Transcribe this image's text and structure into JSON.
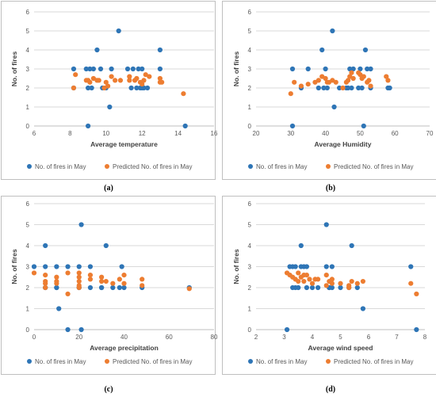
{
  "colors": {
    "actual": "#2E75B6",
    "predicted": "#ED7D31",
    "grid": "#D9D9D9",
    "axis": "#BFBFBF",
    "tick_text": "#595959",
    "label_text": "#404040",
    "panel_border": "#BFBFBF"
  },
  "chart_data": [
    {
      "type": "scatter",
      "panel_label": "(a)",
      "xlabel": "Average temperature",
      "ylabel": "No. of fires",
      "xlim": [
        6,
        16
      ],
      "ylim": [
        0,
        6
      ],
      "xticks": [
        6,
        8,
        10,
        12,
        14,
        16
      ],
      "yticks": [
        0,
        1,
        2,
        3,
        4,
        5,
        6
      ],
      "grid": "horizontal",
      "legend_position": "bottom",
      "series": [
        {
          "name": "No. of fires in May",
          "color": "#2E75B6",
          "points": [
            [
              8.2,
              3
            ],
            [
              8.2,
              2
            ],
            [
              8.9,
              3
            ],
            [
              9.1,
              3
            ],
            [
              9.2,
              2
            ],
            [
              9.3,
              3
            ],
            [
              9.0,
              2
            ],
            [
              9.5,
              4
            ],
            [
              9.8,
              2
            ],
            [
              10.0,
              2
            ],
            [
              10.2,
              1
            ],
            [
              10.3,
              3
            ],
            [
              10.7,
              5
            ],
            [
              11.2,
              3
            ],
            [
              11.4,
              2
            ],
            [
              11.5,
              3
            ],
            [
              11.8,
              3
            ],
            [
              11.9,
              2
            ],
            [
              12.0,
              3
            ],
            [
              12.1,
              2
            ],
            [
              12.3,
              2
            ],
            [
              13.0,
              3
            ],
            [
              13.0,
              4
            ],
            [
              9.0,
              0
            ],
            [
              14.4,
              0
            ],
            [
              11.7,
              2
            ],
            [
              9.7,
              3
            ],
            [
              12.0,
              2
            ]
          ]
        },
        {
          "name": "Predicted No. of fires in May",
          "color": "#ED7D31",
          "points": [
            [
              8.2,
              2.0
            ],
            [
              8.3,
              2.7
            ],
            [
              8.9,
              2.4
            ],
            [
              9.1,
              2.3
            ],
            [
              9.3,
              2.5
            ],
            [
              9.6,
              2.4
            ],
            [
              9.9,
              2.0
            ],
            [
              10.0,
              2.3
            ],
            [
              10.3,
              2.6
            ],
            [
              10.5,
              2.4
            ],
            [
              10.8,
              2.4
            ],
            [
              11.3,
              2.6
            ],
            [
              11.6,
              2.4
            ],
            [
              11.7,
              2.5
            ],
            [
              11.9,
              2.3
            ],
            [
              12.0,
              2.2
            ],
            [
              12.2,
              2.7
            ],
            [
              12.4,
              2.6
            ],
            [
              13.0,
              2.5
            ],
            [
              13.0,
              2.3
            ],
            [
              14.3,
              1.7
            ],
            [
              9.0,
              2.4
            ],
            [
              11.3,
              2.4
            ],
            [
              12.1,
              2.4
            ],
            [
              13.1,
              2.3
            ],
            [
              9.5,
              2.4
            ],
            [
              10.1,
              2.1
            ]
          ]
        }
      ],
      "caption": "(a)"
    },
    {
      "type": "scatter",
      "panel_label": "(b)",
      "xlabel": "Average Humidity",
      "ylabel": "No. of fires",
      "xlim": [
        20,
        70
      ],
      "ylim": [
        0,
        6
      ],
      "xticks": [
        20,
        30,
        40,
        50,
        60,
        70
      ],
      "yticks": [
        0,
        1,
        2,
        3,
        4,
        5,
        6
      ],
      "grid": "horizontal",
      "legend_position": "bottom",
      "series": [
        {
          "name": "No. of fires in May",
          "color": "#2E75B6",
          "points": [
            [
              30.5,
              3
            ],
            [
              30.5,
              0
            ],
            [
              33,
              2
            ],
            [
              35,
              3
            ],
            [
              38,
              2
            ],
            [
              39,
              4
            ],
            [
              39.5,
              2
            ],
            [
              40,
              3
            ],
            [
              40.5,
              2
            ],
            [
              42,
              5
            ],
            [
              42.5,
              1
            ],
            [
              44,
              2
            ],
            [
              46,
              2
            ],
            [
              47,
              3
            ],
            [
              47.5,
              2
            ],
            [
              48,
              3
            ],
            [
              49.5,
              2
            ],
            [
              50,
              3
            ],
            [
              51,
              0
            ],
            [
              51.5,
              4
            ],
            [
              52,
              3
            ],
            [
              53,
              3
            ],
            [
              53,
              2
            ],
            [
              58,
              2
            ],
            [
              58.5,
              2
            ],
            [
              46.5,
              2
            ],
            [
              50.5,
              2
            ]
          ]
        },
        {
          "name": "Predicted No. of fires in May",
          "color": "#ED7D31",
          "points": [
            [
              30,
              1.7
            ],
            [
              31,
              2.3
            ],
            [
              33,
              2.1
            ],
            [
              35,
              2.2
            ],
            [
              37,
              2.3
            ],
            [
              38,
              2.4
            ],
            [
              39,
              2.6
            ],
            [
              40,
              2.5
            ],
            [
              40.5,
              2.3
            ],
            [
              42,
              2.4
            ],
            [
              43,
              2.3
            ],
            [
              45,
              2.0
            ],
            [
              46,
              2.3
            ],
            [
              47,
              2.6
            ],
            [
              47.5,
              2.8
            ],
            [
              48,
              2.5
            ],
            [
              49.5,
              2.8
            ],
            [
              50,
              2.7
            ],
            [
              51,
              2.6
            ],
            [
              52,
              2.3
            ],
            [
              52.5,
              2.4
            ],
            [
              53,
              2.1
            ],
            [
              57.5,
              2.6
            ],
            [
              58,
              2.4
            ],
            [
              41,
              2.3
            ],
            [
              46.5,
              2.4
            ],
            [
              50.5,
              2.5
            ]
          ]
        }
      ],
      "caption": "(b)"
    },
    {
      "type": "scatter",
      "panel_label": "(c)",
      "xlabel": "Average precipitation",
      "ylabel": "No. of fires",
      "xlim": [
        0,
        80
      ],
      "ylim": [
        0,
        6
      ],
      "xticks": [
        0,
        20,
        40,
        60,
        80
      ],
      "yticks": [
        0,
        1,
        2,
        3,
        4,
        5,
        6
      ],
      "grid": "horizontal",
      "legend_position": "bottom",
      "series": [
        {
          "name": "No. of fires in May",
          "color": "#2E75B6",
          "points": [
            [
              0,
              3
            ],
            [
              5,
              3
            ],
            [
              5,
              4
            ],
            [
              5,
              2
            ],
            [
              10,
              3
            ],
            [
              10,
              2
            ],
            [
              11,
              1
            ],
            [
              15,
              3
            ],
            [
              15,
              0
            ],
            [
              20,
              3
            ],
            [
              20,
              2
            ],
            [
              21,
              5
            ],
            [
              21,
              0
            ],
            [
              25,
              3
            ],
            [
              25,
              2
            ],
            [
              30,
              2
            ],
            [
              32,
              4
            ],
            [
              35,
              2
            ],
            [
              38,
              2
            ],
            [
              39,
              3
            ],
            [
              40,
              2
            ],
            [
              48,
              2
            ],
            [
              69,
              2
            ],
            [
              20,
              2
            ],
            [
              5,
              2
            ],
            [
              10,
              2
            ],
            [
              30,
              2
            ]
          ]
        },
        {
          "name": "Predicted No. of fires in May",
          "color": "#ED7D31",
          "points": [
            [
              0,
              2.7
            ],
            [
              5,
              2.6
            ],
            [
              5,
              2.3
            ],
            [
              5,
              2.2
            ],
            [
              5,
              2.0
            ],
            [
              10,
              2.5
            ],
            [
              10,
              2.3
            ],
            [
              10,
              2.2
            ],
            [
              15,
              2.7
            ],
            [
              15,
              1.7
            ],
            [
              20,
              2.7
            ],
            [
              20,
              2.5
            ],
            [
              20,
              2.3
            ],
            [
              20,
              2.1
            ],
            [
              20,
              2.0
            ],
            [
              25,
              2.6
            ],
            [
              25,
              2.4
            ],
            [
              30,
              2.5
            ],
            [
              30,
              2.3
            ],
            [
              35,
              2.2
            ],
            [
              38,
              2.4
            ],
            [
              40,
              2.6
            ],
            [
              40,
              2.2
            ],
            [
              48,
              2.4
            ],
            [
              48,
              2.1
            ],
            [
              69,
              1.95
            ],
            [
              32,
              2.3
            ]
          ]
        }
      ],
      "caption": "(c)"
    },
    {
      "type": "scatter",
      "panel_label": "(d)",
      "xlabel": "Average wind speed",
      "ylabel": "No. of fires",
      "xlim": [
        2,
        8
      ],
      "ylim": [
        0,
        6
      ],
      "xticks": [
        2,
        3,
        4,
        5,
        6,
        7,
        8
      ],
      "yticks": [
        0,
        1,
        2,
        3,
        4,
        5,
        6
      ],
      "grid": "horizontal",
      "legend_position": "bottom",
      "series": [
        {
          "name": "No. of fires in May",
          "color": "#2E75B6",
          "points": [
            [
              3.1,
              0
            ],
            [
              3.2,
              3
            ],
            [
              3.3,
              3
            ],
            [
              3.4,
              2
            ],
            [
              3.4,
              3
            ],
            [
              3.5,
              2
            ],
            [
              3.6,
              3
            ],
            [
              3.6,
              4
            ],
            [
              3.7,
              3
            ],
            [
              3.8,
              3
            ],
            [
              3.8,
              2
            ],
            [
              4.0,
              2
            ],
            [
              4.5,
              3
            ],
            [
              4.5,
              5
            ],
            [
              4.6,
              2
            ],
            [
              4.7,
              3
            ],
            [
              4.7,
              2
            ],
            [
              5.4,
              4
            ],
            [
              5.3,
              2
            ],
            [
              5.6,
              2
            ],
            [
              5.8,
              1
            ],
            [
              7.5,
              3
            ],
            [
              7.7,
              0
            ],
            [
              4.2,
              2
            ],
            [
              5.0,
              2
            ],
            [
              3.3,
              2
            ],
            [
              4.6,
              2
            ]
          ]
        },
        {
          "name": "Predicted No. of fires in May",
          "color": "#ED7D31",
          "points": [
            [
              3.1,
              2.7
            ],
            [
              3.3,
              2.5
            ],
            [
              3.4,
              2.4
            ],
            [
              3.5,
              2.7
            ],
            [
              3.6,
              2.5
            ],
            [
              3.7,
              2.3
            ],
            [
              3.8,
              2.6
            ],
            [
              3.9,
              2.4
            ],
            [
              4.0,
              2.2
            ],
            [
              4.1,
              2.4
            ],
            [
              4.5,
              2.6
            ],
            [
              4.6,
              2.3
            ],
            [
              4.7,
              2.4
            ],
            [
              4.7,
              2.2
            ],
            [
              5.3,
              2.0
            ],
            [
              5.4,
              2.3
            ],
            [
              5.6,
              2.2
            ],
            [
              5.8,
              2.3
            ],
            [
              7.5,
              2.2
            ],
            [
              7.7,
              1.7
            ],
            [
              3.5,
              2.3
            ],
            [
              4.5,
              2.1
            ],
            [
              5.3,
              2.1
            ],
            [
              3.7,
              2.6
            ],
            [
              4.2,
              2.4
            ],
            [
              3.2,
              2.6
            ],
            [
              5.0,
              2.2
            ]
          ]
        }
      ],
      "caption": "(d)"
    }
  ]
}
